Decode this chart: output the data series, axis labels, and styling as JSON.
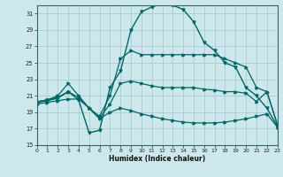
{
  "bg_color": "#cce8ec",
  "grid_color": "#aacccc",
  "line_color": "#006666",
  "x_min": 0,
  "x_max": 23,
  "y_min": 15,
  "y_max": 32,
  "yticks": [
    15,
    17,
    19,
    21,
    23,
    25,
    27,
    29,
    31
  ],
  "xticks": [
    0,
    1,
    2,
    3,
    4,
    5,
    6,
    7,
    8,
    9,
    10,
    11,
    12,
    13,
    14,
    15,
    16,
    17,
    18,
    19,
    20,
    21,
    22,
    23
  ],
  "xlabel": "Humidex (Indice chaleur)",
  "humidex_x": [
    0,
    1,
    2,
    3,
    4,
    5,
    6,
    7,
    8,
    9,
    10,
    11,
    12,
    13,
    14,
    15,
    16,
    17,
    18,
    19,
    20,
    21,
    22,
    23
  ],
  "humidex_y": [
    20.2,
    20.5,
    20.8,
    21.5,
    20.5,
    16.5,
    16.8,
    22.0,
    24.0,
    29.0,
    31.2,
    31.8,
    32.2,
    32.0,
    31.5,
    30.0,
    27.5,
    26.5,
    25.0,
    24.5,
    22.0,
    21.0,
    19.5,
    17.3
  ],
  "max_x": [
    0,
    1,
    2,
    3,
    4,
    5,
    6,
    7,
    8,
    9,
    10,
    11,
    12,
    13,
    14,
    15,
    16,
    17,
    18,
    19,
    20,
    21,
    22,
    23
  ],
  "max_y": [
    20.3,
    20.5,
    21.0,
    22.5,
    21.0,
    19.5,
    18.5,
    21.0,
    25.5,
    26.5,
    26.0,
    26.0,
    26.0,
    26.0,
    26.0,
    26.0,
    26.0,
    26.0,
    25.5,
    25.0,
    24.5,
    22.0,
    21.5,
    17.5
  ],
  "min_x": [
    0,
    1,
    2,
    3,
    4,
    5,
    6,
    7,
    8,
    9,
    10,
    11,
    12,
    13,
    14,
    15,
    16,
    17,
    18,
    19,
    20,
    21,
    22,
    23
  ],
  "min_y": [
    20.0,
    20.2,
    20.4,
    20.6,
    20.6,
    19.5,
    18.2,
    19.0,
    19.5,
    19.2,
    18.8,
    18.5,
    18.2,
    18.0,
    17.8,
    17.7,
    17.7,
    17.7,
    17.8,
    18.0,
    18.2,
    18.5,
    18.8,
    17.2
  ],
  "mean_x": [
    0,
    1,
    2,
    3,
    4,
    5,
    6,
    7,
    8,
    9,
    10,
    11,
    12,
    13,
    14,
    15,
    16,
    17,
    18,
    19,
    20,
    21,
    22,
    23
  ],
  "mean_y": [
    20.2,
    20.4,
    20.7,
    21.5,
    20.8,
    19.5,
    18.3,
    20.0,
    22.5,
    22.8,
    22.5,
    22.2,
    22.0,
    22.0,
    22.0,
    22.0,
    21.8,
    21.7,
    21.5,
    21.5,
    21.3,
    20.3,
    21.5,
    17.5
  ]
}
